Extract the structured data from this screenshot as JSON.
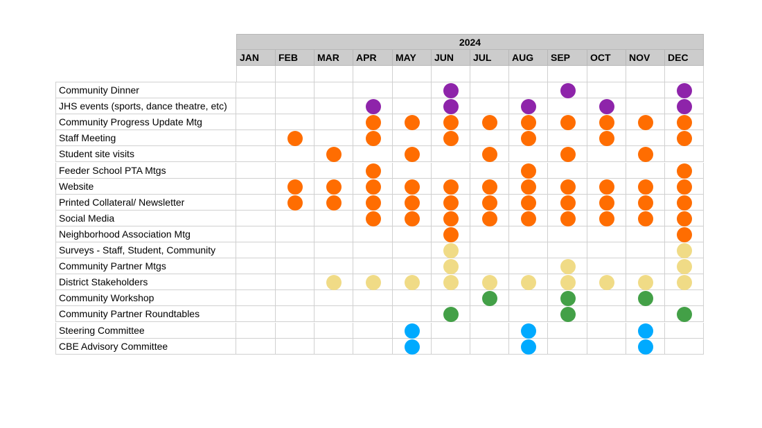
{
  "year": "2024",
  "months": [
    "JAN",
    "FEB",
    "MAR",
    "APR",
    "MAY",
    "JUN",
    "JUL",
    "AUG",
    "SEP",
    "OCT",
    "NOV",
    "DEC"
  ],
  "colors": {
    "purple": "#8e24aa",
    "orange": "#ff6d01",
    "yellow": "#f0db86",
    "green": "#43a047",
    "blue": "#00aaff"
  },
  "rows": [
    {
      "label": "Community Dinner",
      "color": "purple",
      "months": [
        5,
        8,
        11
      ]
    },
    {
      "label": "JHS events (sports, dance theatre, etc)",
      "color": "purple",
      "months": [
        3,
        5,
        7,
        9,
        11
      ]
    },
    {
      "label": "Community Progress Update Mtg",
      "color": "orange",
      "months": [
        3,
        4,
        5,
        6,
        7,
        8,
        9,
        10,
        11
      ]
    },
    {
      "label": "Staff Meeting",
      "color": "orange",
      "months": [
        1,
        3,
        5,
        7,
        9,
        11
      ]
    },
    {
      "label": "Student site visits",
      "color": "orange",
      "months": [
        2,
        4,
        6,
        8,
        10
      ]
    },
    {
      "label": "Feeder School PTA Mtgs",
      "color": "orange",
      "months": [
        3,
        7,
        11
      ]
    },
    {
      "label": "Website",
      "color": "orange",
      "months": [
        1,
        2,
        3,
        4,
        5,
        6,
        7,
        8,
        9,
        10,
        11
      ]
    },
    {
      "label": "Printed Collateral/ Newsletter",
      "color": "orange",
      "months": [
        1,
        2,
        3,
        4,
        5,
        6,
        7,
        8,
        9,
        10,
        11
      ]
    },
    {
      "label": "Social Media",
      "color": "orange",
      "months": [
        3,
        4,
        5,
        6,
        7,
        8,
        9,
        10,
        11
      ]
    },
    {
      "label": "Neighborhood Association Mtg",
      "color": "orange",
      "months": [
        5,
        11
      ]
    },
    {
      "label": "Surveys - Staff, Student, Community",
      "color": "yellow",
      "months": [
        5,
        11
      ]
    },
    {
      "label": "Community Partner Mtgs",
      "color": "yellow",
      "months": [
        5,
        8,
        11
      ]
    },
    {
      "label": "District Stakeholders",
      "color": "yellow",
      "months": [
        2,
        3,
        4,
        5,
        6,
        7,
        8,
        9,
        10,
        11
      ]
    },
    {
      "label": "Community Workshop",
      "color": "green",
      "months": [
        6,
        8,
        10
      ]
    },
    {
      "label": "Community Partner Roundtables",
      "color": "green",
      "months": [
        5,
        8,
        11
      ]
    },
    {
      "label": "Steering Committee",
      "color": "blue",
      "months": [
        4,
        7,
        10
      ]
    },
    {
      "label": "CBE Advisory Committee",
      "color": "blue",
      "months": [
        4,
        7,
        10
      ]
    }
  ]
}
